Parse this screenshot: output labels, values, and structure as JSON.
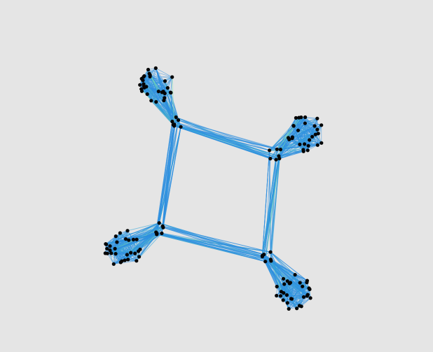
{
  "colors": {
    "background": "#e5e5e5",
    "edge_primary": "#2f8fe0",
    "edge_secondary": "#39a8d8",
    "edge_highlight": "#7fe0b0",
    "node": "#050505"
  },
  "graph": {
    "description_free": true,
    "clusters": [
      {
        "id": "top-left-cluster"
      },
      {
        "id": "top-right-cluster"
      },
      {
        "id": "bottom-left-cluster"
      },
      {
        "id": "bottom-right-cluster"
      }
    ],
    "hubs": [
      {
        "id": "hub-top-left"
      },
      {
        "id": "hub-top-right"
      },
      {
        "id": "hub-bottom-left"
      },
      {
        "id": "hub-bottom-right"
      }
    ],
    "connections": [
      {
        "from": "hub-top-left",
        "to": "hub-top-right"
      },
      {
        "from": "hub-top-right",
        "to": "hub-bottom-right"
      },
      {
        "from": "hub-bottom-right",
        "to": "hub-bottom-left"
      },
      {
        "from": "hub-bottom-left",
        "to": "hub-top-left"
      },
      {
        "from": "top-left-cluster",
        "to": "hub-top-left"
      },
      {
        "from": "top-right-cluster",
        "to": "hub-top-right"
      },
      {
        "from": "bottom-left-cluster",
        "to": "hub-bottom-left"
      },
      {
        "from": "bottom-right-cluster",
        "to": "hub-bottom-right"
      }
    ]
  }
}
